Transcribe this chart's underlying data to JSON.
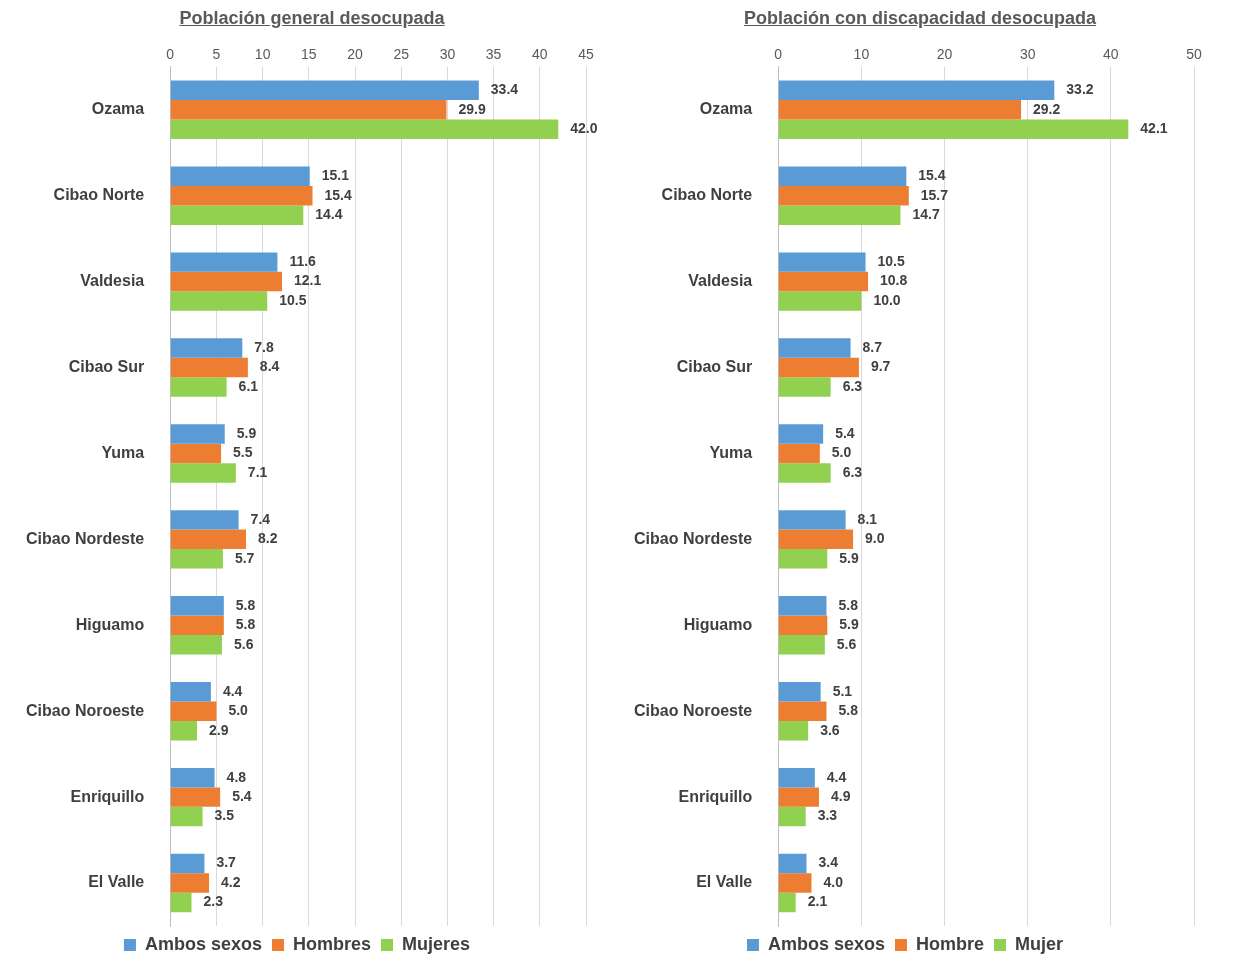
{
  "chart_data": [
    {
      "type": "bar",
      "orientation": "horizontal",
      "title": "Población general desocupada",
      "categories": [
        "Ozama",
        "Cibao Norte",
        "Valdesia",
        "Cibao Sur",
        "Yuma",
        "Cibao Nordeste",
        "Higuamo",
        "Cibao Noroeste",
        "Enriquillo",
        "El Valle"
      ],
      "xlim": [
        0,
        45
      ],
      "xticks": [
        0,
        5,
        10,
        15,
        20,
        25,
        30,
        35,
        40,
        45
      ],
      "grid": "x",
      "legend": "bottom",
      "series": [
        {
          "name": "Ambos sexos",
          "color": "#5b9bd5",
          "values": [
            33.4,
            15.1,
            11.6,
            7.8,
            5.9,
            7.4,
            5.8,
            4.4,
            4.8,
            3.7
          ],
          "value_labels": [
            "33.4",
            "15.1",
            "11.6",
            "7.8",
            "5.9",
            "7.4",
            "5.8",
            "4.4",
            "4.8",
            "3.7"
          ]
        },
        {
          "name": "Hombres",
          "color": "#ed7d31",
          "values": [
            29.9,
            15.4,
            12.1,
            8.4,
            5.5,
            8.2,
            5.8,
            5.0,
            5.4,
            4.2
          ],
          "value_labels": [
            "29.9",
            "15.4",
            "12.1",
            "8.4",
            "5.5",
            "8.2",
            "5.8",
            "5.0",
            "5.4",
            "4.2"
          ]
        },
        {
          "name": "Mujeres",
          "color": "#92d050",
          "values": [
            42.0,
            14.4,
            10.5,
            6.1,
            7.1,
            5.7,
            5.6,
            2.9,
            3.5,
            2.3
          ],
          "value_labels": [
            "42.0",
            "14.4",
            "10.5",
            "6.1",
            "7.1",
            "5.7",
            "5.6",
            "2.9",
            "3.5",
            "2.3"
          ]
        }
      ]
    },
    {
      "type": "bar",
      "orientation": "horizontal",
      "title": "Población con discapacidad desocupada",
      "categories": [
        "Ozama",
        "Cibao Norte",
        "Valdesia",
        "Cibao Sur",
        "Yuma",
        "Cibao Nordeste",
        "Higuamo",
        "Cibao Noroeste",
        "Enriquillo",
        "El Valle"
      ],
      "xlim": [
        0,
        50
      ],
      "xticks": [
        0,
        10,
        20,
        30,
        40,
        50
      ],
      "grid": "x",
      "legend": "bottom",
      "series": [
        {
          "name": "Ambos sexos",
          "color": "#5b9bd5",
          "values": [
            33.2,
            15.4,
            10.5,
            8.7,
            5.4,
            8.1,
            5.8,
            5.1,
            4.4,
            3.4
          ],
          "value_labels": [
            "33.2",
            "15.4",
            "10.5",
            "8.7",
            "5.4",
            "8.1",
            "5.8",
            "5.1",
            "4.4",
            "3.4"
          ]
        },
        {
          "name": "Hombre",
          "color": "#ed7d31",
          "values": [
            29.2,
            15.7,
            10.8,
            9.7,
            5.0,
            9.0,
            5.9,
            5.8,
            4.9,
            4.0
          ],
          "value_labels": [
            "29.2",
            "15.7",
            "10.8",
            "9.7",
            "5.0",
            "9.0",
            "5.9",
            "5.8",
            "4.9",
            "4.0"
          ]
        },
        {
          "name": "Mujer",
          "color": "#92d050",
          "values": [
            42.1,
            14.7,
            10.0,
            6.3,
            6.3,
            5.9,
            5.6,
            3.6,
            3.3,
            2.1
          ],
          "value_labels": [
            "42.1",
            "14.7",
            "10.0",
            "6.3",
            "6.3",
            "5.9",
            "5.6",
            "3.6",
            "3.3",
            "2.1"
          ]
        }
      ]
    }
  ]
}
